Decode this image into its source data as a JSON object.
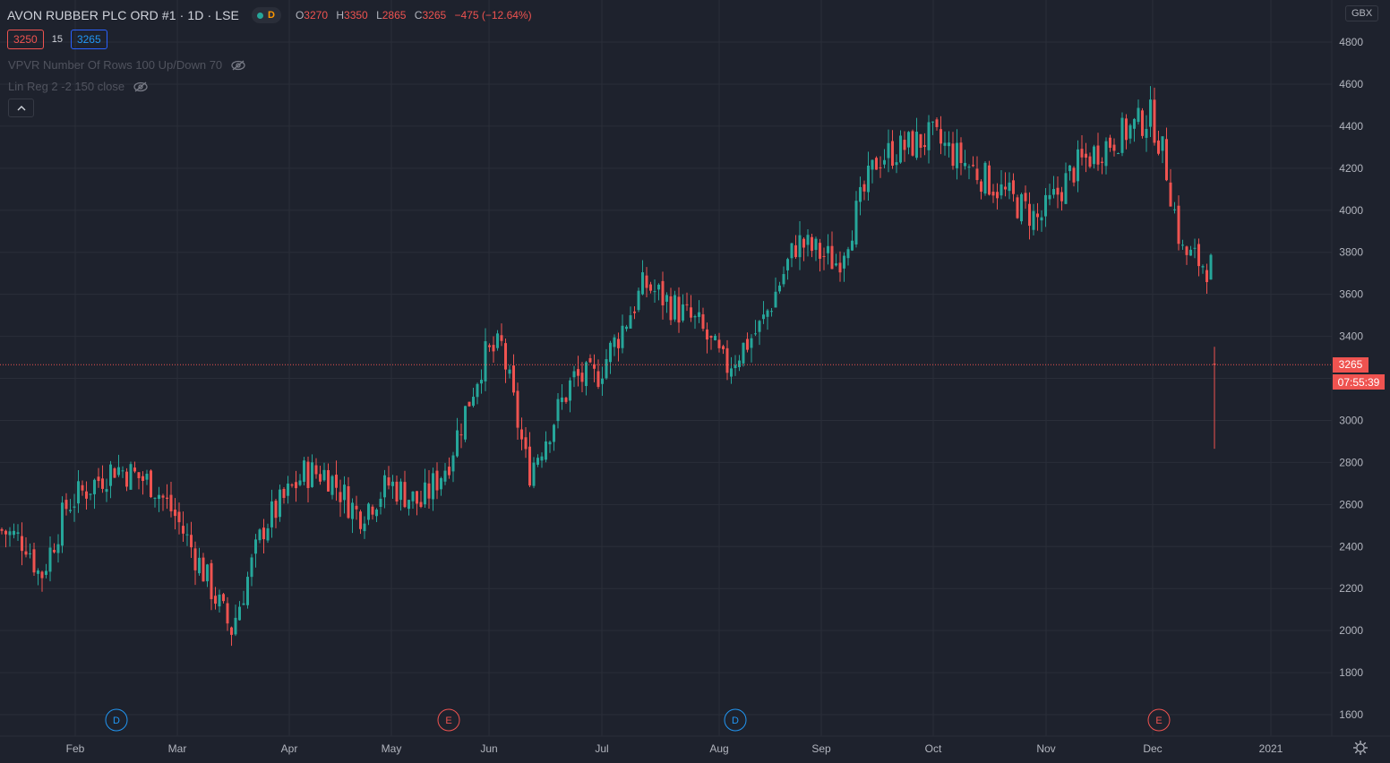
{
  "header": {
    "symbol": "AVON RUBBER PLC ORD #1 · 1D · LSE",
    "badge": "D",
    "o_label": "O",
    "o_value": "3270",
    "h_label": "H",
    "h_value": "3350",
    "l_label": "L",
    "l_value": "2865",
    "c_label": "C",
    "c_value": "3265",
    "change": "−475 (−12.64%)"
  },
  "quote": {
    "bid": "3250",
    "spread": "15",
    "ask": "3265"
  },
  "indicators": [
    {
      "label": "VPVR Number Of Rows 100 Up/Down 70"
    },
    {
      "label": "Lin Reg 2 -2 150 close"
    }
  ],
  "currency": "GBX",
  "price_labels": {
    "current": "3265",
    "countdown": "07:55:39"
  },
  "colors": {
    "up": "#26a69a",
    "down": "#ef5350",
    "background": "#1e222d",
    "grid": "#2a2e39"
  },
  "chart_data": {
    "type": "candlestick",
    "title": "AVON RUBBER PLC ORD #1 · 1D · LSE",
    "x_tick_labels": [
      "Feb",
      "Mar",
      "Apr",
      "May",
      "Jun",
      "Jul",
      "Aug",
      "Sep",
      "Oct",
      "Nov",
      "Dec",
      "2021"
    ],
    "y_ticks": [
      1600,
      1800,
      2000,
      2200,
      2400,
      2600,
      2800,
      3000,
      3200,
      3400,
      3600,
      3800,
      4000,
      4200,
      4400,
      4600,
      4800
    ],
    "ylim": [
      1560,
      4820
    ],
    "grid": true,
    "last_price": 3265,
    "last_bar": {
      "open": 3270,
      "high": 3350,
      "low": 2865,
      "close": 3265
    },
    "monthly_path": {
      "dates": [
        "Jan",
        "Feb",
        "Mar-low",
        "Apr",
        "May",
        "Jun",
        "Jul",
        "Aug",
        "Sep",
        "Oct",
        "Nov",
        "Dec-high",
        "Dec-mid"
      ],
      "approx_close": [
        2450,
        2700,
        2100,
        2600,
        2600,
        3200,
        3600,
        3400,
        3800,
        4300,
        4000,
        4500,
        3730
      ]
    },
    "events": [
      {
        "type": "D",
        "month": "Feb"
      },
      {
        "type": "E",
        "month": "May"
      },
      {
        "type": "D",
        "month": "Aug"
      },
      {
        "type": "E",
        "month": "Dec"
      }
    ]
  }
}
